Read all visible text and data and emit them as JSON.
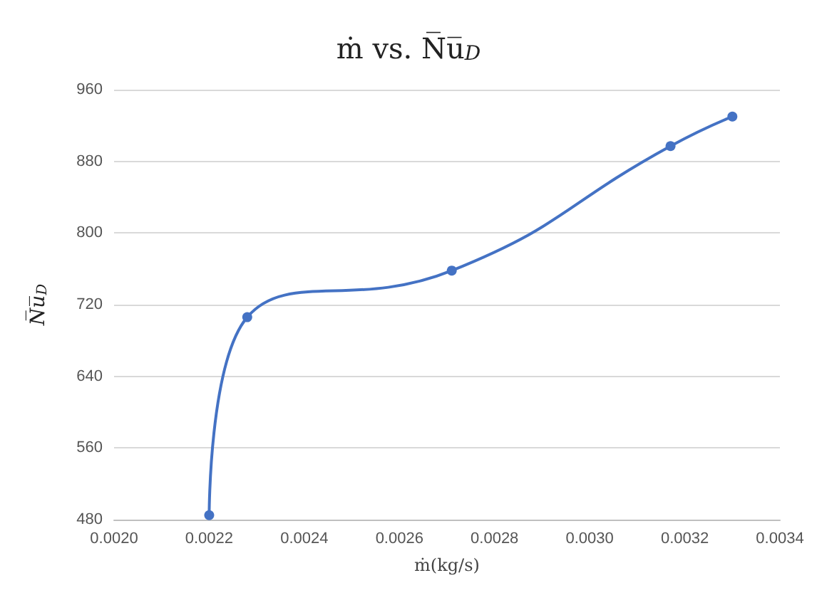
{
  "chart_data": {
    "type": "line",
    "title": "ṁ vs. N̅u̅$_{D}$",
    "xlabel": "ṁ(kg/s)",
    "ylabel": "N̅u̅$_{D}$",
    "x": [
      0.0022,
      0.00228,
      0.00271,
      0.00317,
      0.0033
    ],
    "series": [
      {
        "color": "#4472c4",
        "values": [
          485,
          706,
          758,
          897,
          930
        ]
      }
    ],
    "xlim": [
      0.002,
      0.0034
    ],
    "xticks": [
      {
        "value": 0.002,
        "label": "0.0020"
      },
      {
        "value": 0.0022,
        "label": "0.0022"
      },
      {
        "value": 0.0024,
        "label": "0.0024"
      },
      {
        "value": 0.0026,
        "label": "0.0026"
      },
      {
        "value": 0.0028,
        "label": "0.0028"
      },
      {
        "value": 0.003,
        "label": "0.0030"
      },
      {
        "value": 0.0032,
        "label": "0.0032"
      },
      {
        "value": 0.0034,
        "label": "0.0034"
      }
    ],
    "ylim": [
      480,
      960
    ],
    "yticks": [
      480,
      560,
      640,
      720,
      800,
      880,
      960
    ],
    "grid": "y",
    "marker": "circle",
    "line_style": "solid"
  }
}
